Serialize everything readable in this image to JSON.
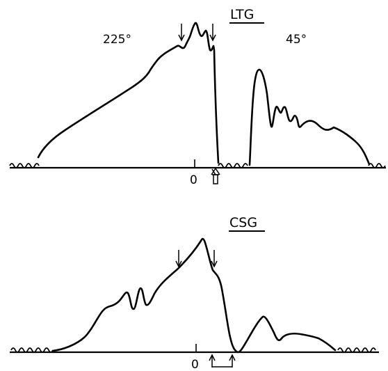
{
  "top_panel": {
    "title": "LTG",
    "left_angle": "225°",
    "right_angle": "45°",
    "zero_label": "0"
  },
  "bottom_panel": {
    "title": "CSG",
    "zero_label": "0"
  }
}
